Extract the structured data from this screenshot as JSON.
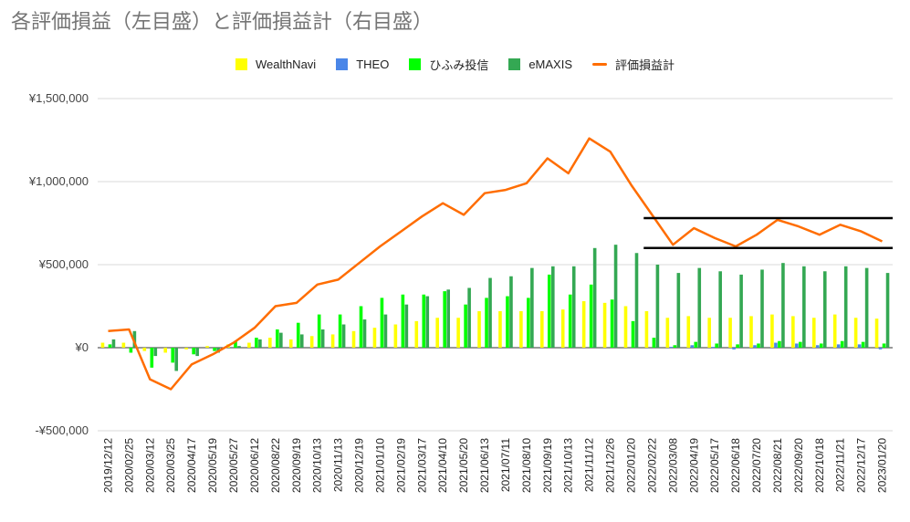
{
  "title": "各評価損益（左目盛）と評価損益計（右目盛）",
  "legend": [
    {
      "label": "WealthNavi",
      "color": "#ffff00",
      "kind": "box"
    },
    {
      "label": "THEO",
      "color": "#4a86e8",
      "kind": "box"
    },
    {
      "label": "ひふみ投信",
      "color": "#00ff00",
      "kind": "box"
    },
    {
      "label": "eMAXIS",
      "color": "#34a853",
      "kind": "box"
    },
    {
      "label": "評価損益計",
      "color": "#ff6d01",
      "kind": "line"
    }
  ],
  "chart_data": {
    "type": "bar",
    "title": "各評価損益（左目盛）と評価損益計（右目盛）",
    "xlabel": "",
    "ylabel": "",
    "ylim": [
      -500000,
      1500000
    ],
    "yticks": [
      -500000,
      0,
      500000,
      1000000,
      1500000
    ],
    "ytick_labels": [
      "-¥500,000",
      "¥0",
      "¥500,000",
      "¥1,000,000",
      "¥1,500,000"
    ],
    "x_tick_labels": [
      "2019/12/12",
      "2020/02/25",
      "2020/03/12",
      "2020/03/25",
      "2020/04/17",
      "2020/05/19",
      "2020/05/27",
      "2020/06/12",
      "2020/08/22",
      "2020/09/19",
      "2020/10/13",
      "2020/11/13",
      "2020/12/19",
      "2021/01/10",
      "2021/02/19",
      "2021/03/17",
      "2021/04/10",
      "2021/05/20",
      "2021/06/13",
      "2021/07/11",
      "2021/08/10",
      "2021/09/19",
      "2021/10/13",
      "2021/11/12",
      "2021/12/26",
      "2022/01/20",
      "2022/02/22",
      "2022/03/08",
      "2022/04/19",
      "2022/05/17",
      "2022/06/18",
      "2022/07/20",
      "2022/08/21",
      "2022/09/20",
      "2022/10/18",
      "2022/11/21",
      "2022/12/17",
      "2023/01/20"
    ],
    "grid": true,
    "series": [
      {
        "name": "WealthNavi",
        "color": "#ffff00",
        "kind": "bar",
        "values": [
          30000,
          30000,
          -20000,
          -30000,
          -10000,
          10000,
          20000,
          30000,
          60000,
          50000,
          70000,
          80000,
          100000,
          120000,
          140000,
          160000,
          180000,
          180000,
          220000,
          220000,
          220000,
          220000,
          230000,
          280000,
          270000,
          250000,
          220000,
          180000,
          190000,
          180000,
          180000,
          190000,
          200000,
          190000,
          180000,
          200000,
          180000,
          175000
        ]
      },
      {
        "name": "THEO",
        "color": "#4a86e8",
        "kind": "bar",
        "values": [
          0,
          0,
          0,
          0,
          0,
          0,
          0,
          0,
          0,
          0,
          0,
          0,
          0,
          0,
          0,
          0,
          0,
          0,
          0,
          0,
          0,
          0,
          0,
          0,
          0,
          0,
          0,
          5000,
          15000,
          5000,
          -10000,
          15000,
          30000,
          25000,
          15000,
          20000,
          20000,
          -10000
        ]
      },
      {
        "name": "ひふみ投信",
        "color": "#00ff00",
        "kind": "bar",
        "values": [
          20000,
          -30000,
          -120000,
          -90000,
          -40000,
          -20000,
          40000,
          60000,
          110000,
          150000,
          200000,
          200000,
          250000,
          300000,
          320000,
          320000,
          340000,
          260000,
          300000,
          310000,
          300000,
          440000,
          320000,
          380000,
          290000,
          160000,
          60000,
          15000,
          35000,
          25000,
          20000,
          25000,
          40000,
          35000,
          25000,
          40000,
          35000,
          25000
        ]
      },
      {
        "name": "eMAXIS",
        "color": "#34a853",
        "kind": "bar",
        "values": [
          50000,
          100000,
          -50000,
          -140000,
          -50000,
          -30000,
          10000,
          50000,
          90000,
          80000,
          110000,
          140000,
          170000,
          200000,
          260000,
          310000,
          350000,
          360000,
          420000,
          430000,
          480000,
          490000,
          490000,
          600000,
          620000,
          570000,
          500000,
          450000,
          480000,
          460000,
          440000,
          470000,
          510000,
          490000,
          460000,
          490000,
          480000,
          450000
        ]
      },
      {
        "name": "評価損益計",
        "color": "#ff6d01",
        "kind": "line",
        "axis": "right",
        "values": [
          100000,
          110000,
          -190000,
          -250000,
          -100000,
          -40000,
          30000,
          120000,
          250000,
          270000,
          380000,
          410000,
          510000,
          610000,
          700000,
          790000,
          870000,
          800000,
          930000,
          950000,
          990000,
          1140000,
          1050000,
          1260000,
          1180000,
          980000,
          800000,
          620000,
          720000,
          660000,
          610000,
          680000,
          770000,
          730000,
          680000,
          740000,
          700000,
          640000
        ]
      }
    ],
    "annotations": [
      {
        "type": "hline",
        "y": 780000,
        "x_from": "2022/02/22",
        "color": "#000000"
      },
      {
        "type": "hline",
        "y": 600000,
        "x_from": "2022/02/22",
        "color": "#000000"
      }
    ]
  }
}
